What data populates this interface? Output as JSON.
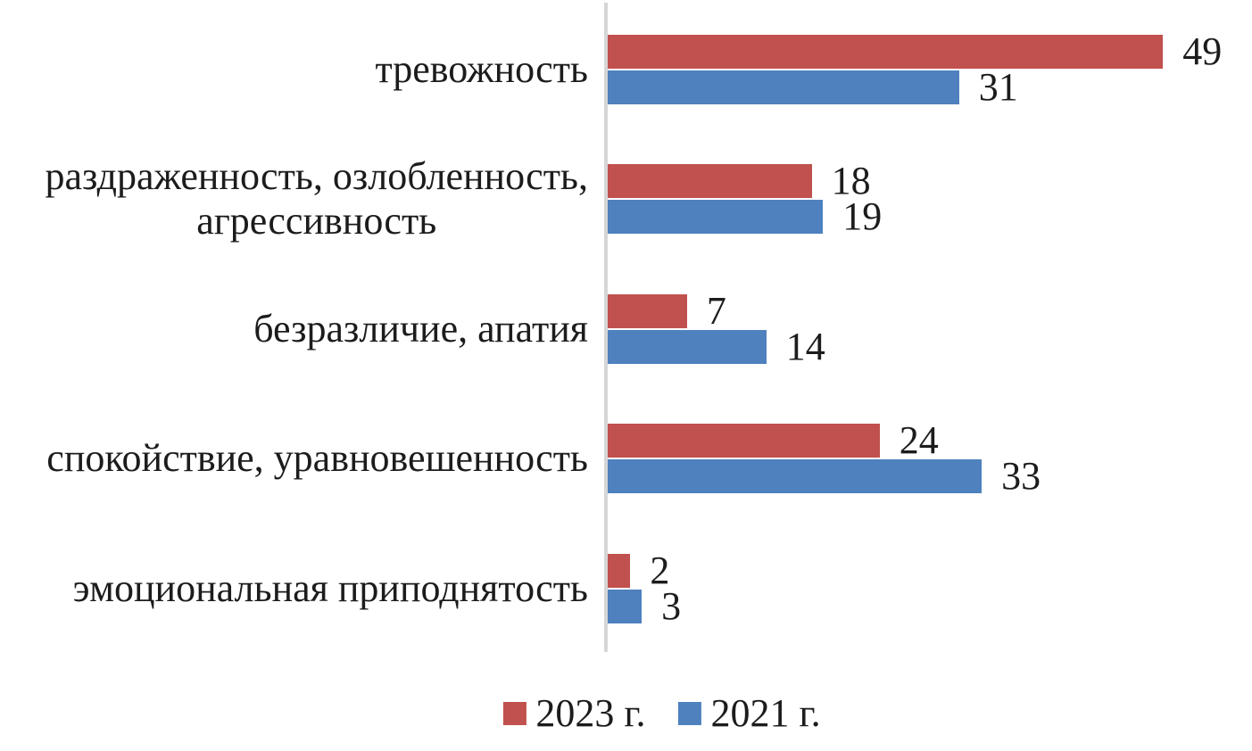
{
  "chart_data": {
    "type": "bar",
    "orientation": "horizontal",
    "title": "",
    "xlabel": "",
    "ylabel": "",
    "xlim": [
      0,
      55
    ],
    "grid": false,
    "value_labels": true,
    "legend_position": "bottom",
    "categories": [
      "тревожность",
      "раздраженность, озлобленность,\nагрессивность",
      "безразличие, апатия",
      "спокойствие, уравновешенность",
      "эмоциональная приподнятость"
    ],
    "series": [
      {
        "name": "2023 г.",
        "color": "#c1514e",
        "values": [
          49,
          18,
          7,
          24,
          2
        ]
      },
      {
        "name": "2021 г.",
        "color": "#4e81be",
        "values": [
          31,
          19,
          14,
          33,
          3
        ]
      }
    ]
  },
  "colors": {
    "axis_line": "#d6d6d6",
    "text": "#1c1c1c",
    "background": "#ffffff"
  },
  "legend": {
    "items": [
      {
        "label": "2023 г.",
        "color": "#c1514e"
      },
      {
        "label": "2021 г.",
        "color": "#4e81be"
      }
    ]
  }
}
